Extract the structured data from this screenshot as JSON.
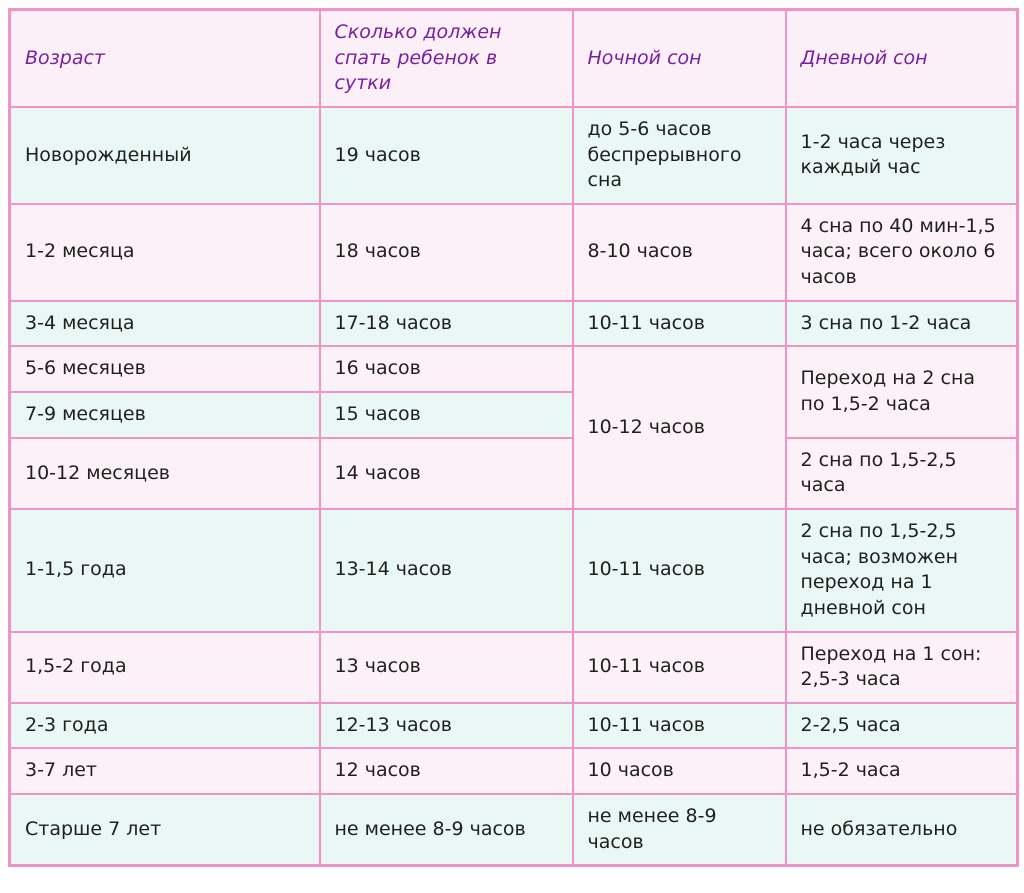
{
  "colors": {
    "border": "#f094c8",
    "header_bg": "#fcf0f8",
    "header_text": "#7b1fa2",
    "row_cyan": "#e9f7f5",
    "row_pink": "#fdf1f8",
    "text": "#1f1f1f",
    "page_bg": "#ffffff"
  },
  "chart_data": {
    "type": "table",
    "title": "",
    "legend_position": "none",
    "grid": "on",
    "columns": [
      "Возраст",
      "Сколько должен спать ребенок в сутки",
      "Ночной сон",
      "Дневной сон"
    ],
    "rows": [
      {
        "cells": [
          {
            "text": "Новорожденный"
          },
          {
            "text": "19 часов"
          },
          {
            "text": "до 5-6 часов беспрерывного сна"
          },
          {
            "text": "1-2 часа через каждый час"
          }
        ]
      },
      {
        "cells": [
          {
            "text": "1-2 месяца"
          },
          {
            "text": "18 часов"
          },
          {
            "text": "8-10 часов"
          },
          {
            "text": "4 сна по 40 мин-1,5 часа; всего около 6 часов"
          }
        ]
      },
      {
        "cells": [
          {
            "text": "3-4 месяца"
          },
          {
            "text": "17-18 часов"
          },
          {
            "text": "10-11 часов"
          },
          {
            "text": "3 сна по 1-2 часа"
          }
        ]
      },
      {
        "cells": [
          {
            "text": "5-6 месяцев"
          },
          {
            "text": "16 часов"
          },
          {
            "text": "10-12 часов",
            "rowspan": 3
          },
          {
            "text": "Переход на 2 сна по 1,5-2 часа",
            "rowspan": 2
          }
        ]
      },
      {
        "cells": [
          {
            "text": "7-9 месяцев"
          },
          {
            "text": "15 часов"
          }
        ]
      },
      {
        "cells": [
          {
            "text": "10-12 месяцев"
          },
          {
            "text": "14 часов"
          },
          {
            "text": "2 сна по 1,5-2,5 часа"
          }
        ]
      },
      {
        "cells": [
          {
            "text": "1-1,5 года"
          },
          {
            "text": "13-14 часов"
          },
          {
            "text": "10-11 часов"
          },
          {
            "text": "2 сна по 1,5-2,5 часа; возможен переход на 1 дневной сон"
          }
        ]
      },
      {
        "cells": [
          {
            "text": "1,5-2 года"
          },
          {
            "text": "13 часов"
          },
          {
            "text": "10-11 часов"
          },
          {
            "text": "Переход на 1 сон: 2,5-3 часа"
          }
        ]
      },
      {
        "cells": [
          {
            "text": "2-3 года"
          },
          {
            "text": "12-13 часов"
          },
          {
            "text": "10-11 часов"
          },
          {
            "text": "2-2,5 часа"
          }
        ]
      },
      {
        "cells": [
          {
            "text": "3-7 лет"
          },
          {
            "text": "12 часов"
          },
          {
            "text": "10 часов"
          },
          {
            "text": "1,5-2 часа"
          }
        ]
      },
      {
        "cells": [
          {
            "text": "Старше 7 лет"
          },
          {
            "text": "не менее 8-9 часов"
          },
          {
            "text": "не менее 8-9 часов"
          },
          {
            "text": "не обязательно"
          }
        ]
      }
    ]
  }
}
